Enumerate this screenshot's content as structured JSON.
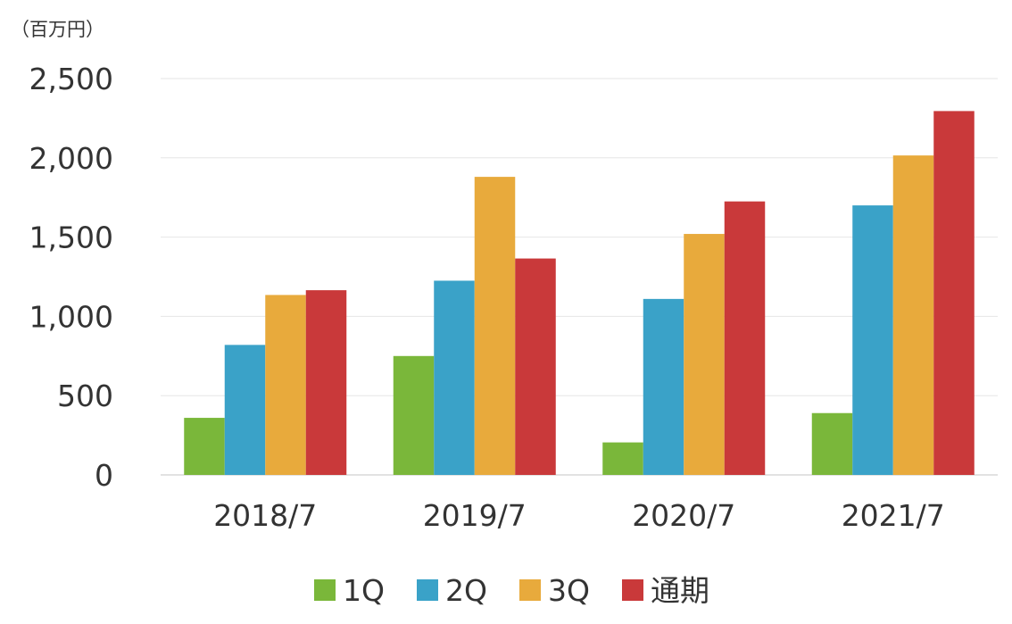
{
  "chart_data": {
    "type": "bar",
    "unit_label": "（百万円）",
    "categories": [
      "2018/7",
      "2019/7",
      "2020/7",
      "2021/7"
    ],
    "series": [
      {
        "name": "1Q",
        "color": "#7ab73a",
        "values": [
          360,
          750,
          205,
          390
        ]
      },
      {
        "name": "2Q",
        "color": "#3aa2c8",
        "values": [
          820,
          1225,
          1110,
          1700
        ]
      },
      {
        "name": "3Q",
        "color": "#e8aa3c",
        "values": [
          1135,
          1880,
          1520,
          2015
        ]
      },
      {
        "name": "通期",
        "color": "#c9393a",
        "values": [
          1165,
          1365,
          1725,
          2295
        ]
      }
    ],
    "y_ticks": [
      "0",
      "500",
      "1,000",
      "1,500",
      "2,000",
      "2,500"
    ],
    "ylim": [
      0,
      2500
    ],
    "legend_position": "bottom-center",
    "grid": true
  }
}
